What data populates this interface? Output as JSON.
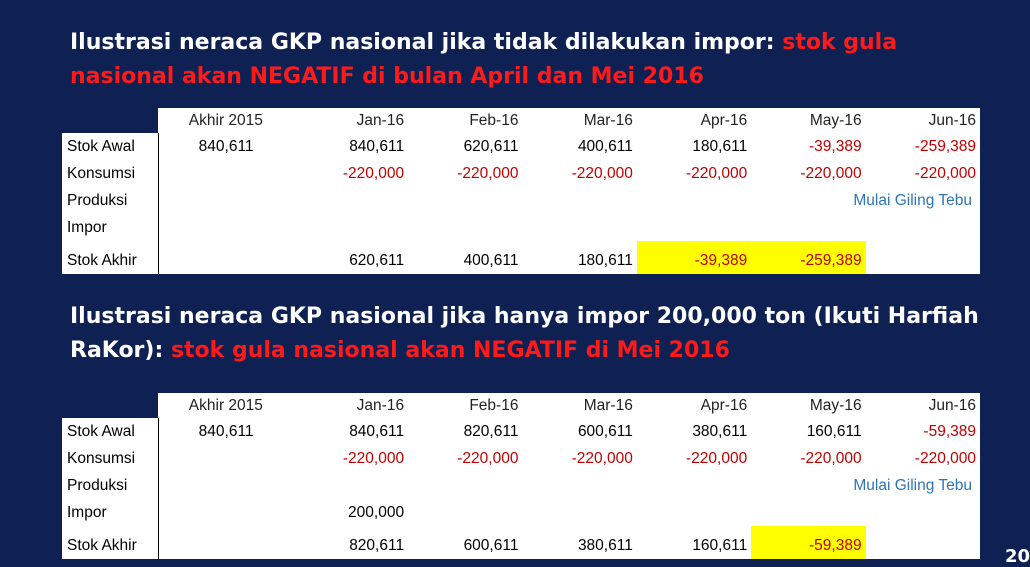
{
  "heading1": {
    "white": "Ilustrasi neraca GKP nasional jika tidak dilakukan impor: ",
    "red": "stok gula nasional akan NEGATIF di bulan April dan Mei 2016"
  },
  "heading2": {
    "white": "Ilustrasi neraca GKP nasional jika hanya impor 200,000 ton (Ikuti Harfiah RaKor): ",
    "red": "stok gula nasional akan NEGATIF di Mei 2016"
  },
  "columns": [
    "Akhir 2015",
    "Jan-16",
    "Feb-16",
    "Mar-16",
    "Apr-16",
    "May-16",
    "Jun-16"
  ],
  "row_labels": {
    "stok_awal": "Stok Awal",
    "konsumsi": "Konsumsi",
    "produksi": "Produksi",
    "impor": "Impor",
    "stok_akhir": "Stok Akhir"
  },
  "note": "Mulai Giling Tebu",
  "table1": {
    "stok_awal": [
      "840,611",
      "840,611",
      "620,611",
      "400,611",
      "180,611",
      "-39,389",
      "-259,389"
    ],
    "konsumsi": [
      "",
      "-220,000",
      "-220,000",
      "-220,000",
      "-220,000",
      "-220,000",
      "-220,000"
    ],
    "produksi": [
      "",
      "",
      "",
      "",
      "",
      "",
      ""
    ],
    "impor": [
      "",
      "",
      "",
      "",
      "",
      "",
      ""
    ],
    "stok_akhir": [
      "",
      "620,611",
      "400,611",
      "180,611",
      "-39,389",
      "-259,389",
      ""
    ]
  },
  "table2": {
    "stok_awal": [
      "840,611",
      "840,611",
      "820,611",
      "600,611",
      "380,611",
      "160,611",
      "-59,389"
    ],
    "konsumsi": [
      "",
      "-220,000",
      "-220,000",
      "-220,000",
      "-220,000",
      "-220,000",
      "-220,000"
    ],
    "produksi": [
      "",
      "",
      "",
      "",
      "",
      "",
      ""
    ],
    "impor": [
      "",
      "200,000",
      "",
      "",
      "",
      "",
      ""
    ],
    "stok_akhir": [
      "",
      "820,611",
      "600,611",
      "380,611",
      "160,611",
      "-59,389",
      ""
    ]
  },
  "highlight_color": "#ffff00",
  "negative_color": "#c00000",
  "note_color": "#2e75b6",
  "page_number": "20"
}
